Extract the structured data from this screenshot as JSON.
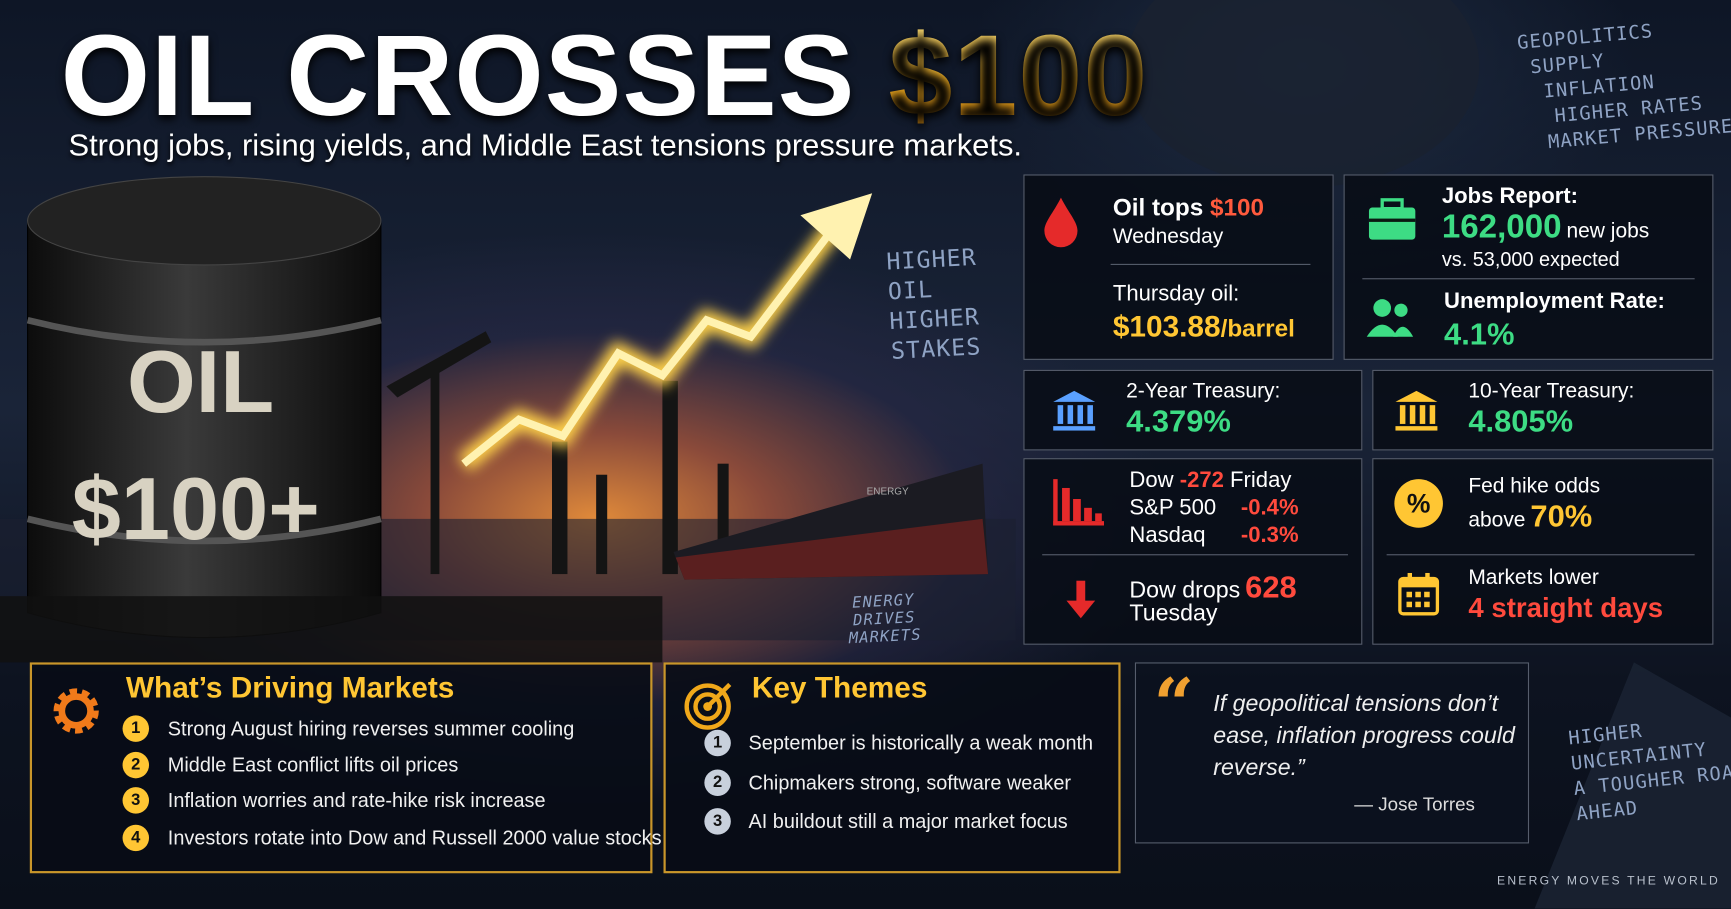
{
  "header": {
    "title_main": "OIL CROSSES",
    "title_highlight": "$100",
    "subtitle": "Strong jobs, rising yields, and Middle East tensions pressure markets."
  },
  "scene": {
    "barrel_line1": "OIL",
    "barrel_line2": "$100+",
    "ship": "ENERGY",
    "overlay_top": [
      "HIGHER",
      "OIL",
      "HIGHER",
      "STAKES"
    ],
    "overlay_bottom": [
      "ENERGY",
      "DRIVES",
      "MARKETS"
    ]
  },
  "corner_tags": [
    "GEOPOLITICS",
    "SUPPLY",
    "INFLATION",
    "HIGHER RATES",
    "MARKET PRESSURE"
  ],
  "cards": {
    "oil": {
      "label": "Oil tops",
      "price": "$100",
      "day": "Wednesday",
      "thursday_label": "Thursday oil:",
      "thursday_price": "$103.88",
      "unit": "/barrel"
    },
    "jobs": {
      "label": "Jobs Report:",
      "value": "162,000",
      "suffix": "new jobs",
      "expected": "vs. 53,000 expected",
      "unemployment_label": "Unemployment Rate:",
      "unemployment_value": "4.1%"
    },
    "treasury_2y": {
      "label": "2-Year Treasury:",
      "value": "4.379%"
    },
    "treasury_10y": {
      "label": "10-Year Treasury:",
      "value": "4.805%"
    },
    "indices": {
      "rows": [
        [
          "Dow",
          "-272",
          "Friday"
        ],
        [
          "S&P 500",
          "-0.4%"
        ],
        [
          "Nasdaq",
          "-0.3%"
        ]
      ],
      "drop_label": "Dow drops",
      "drop_value": "628",
      "drop_day": "Tuesday"
    },
    "fed": {
      "label": "Fed hike odds",
      "above": "above",
      "value": "70%",
      "markets_label": "Markets lower",
      "markets_value": "4 straight days"
    }
  },
  "driving": {
    "title": "What’s Driving Markets",
    "items": [
      {
        "number": "1",
        "text": "Strong August hiring reverses summer cooling"
      },
      {
        "number": "2",
        "text": "Middle East conflict lifts oil prices"
      },
      {
        "number": "3",
        "text": "Inflation worries and rate-hike risk increase"
      },
      {
        "number": "4",
        "text": "Investors rotate into Dow and Russell 2000 value stocks"
      }
    ]
  },
  "themes": {
    "title": "Key Themes",
    "items": [
      {
        "number": "1",
        "text": "September is historically a weak month"
      },
      {
        "number": "2",
        "text": "Chipmakers strong, software weaker"
      },
      {
        "number": "3",
        "text": "AI buildout still a major market focus"
      }
    ]
  },
  "quote": {
    "text": "If geopolitical tensions don’t ease, inflation progress could reverse.”",
    "author": "— Jose Torres"
  },
  "corner_bottom": [
    "HIGHER",
    "UNCERTAINTY",
    "A TOUGHER ROAD",
    "AHEAD"
  ],
  "footer": "ENERGY MOVES THE WORLD"
}
